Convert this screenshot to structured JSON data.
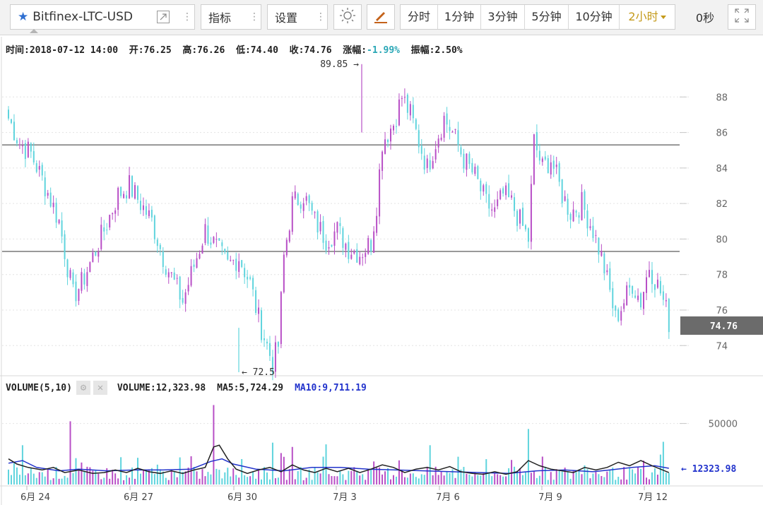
{
  "toolbar": {
    "symbol": "Bitfinex-LTC-USD",
    "indicators_label": "指标",
    "settings_label": "设置",
    "timeframes": [
      "分时",
      "1分钟",
      "3分钟",
      "5分钟",
      "10分钟",
      "2小时"
    ],
    "active_timeframe": "2小时",
    "countdown": "0秒",
    "accent_color": "#c49a1a",
    "star_color": "#2f6fd1"
  },
  "info": {
    "time_label": "时间:",
    "time": "2018-07-12 14:00",
    "open_label": "开:",
    "open": "76.25",
    "high_label": "高:",
    "high": "76.26",
    "low_label": "低:",
    "low": "74.40",
    "close_label": "收:",
    "close": "74.76",
    "change_label": "涨幅:",
    "change": "-1.99%",
    "amplitude_label": "振幅:",
    "amplitude": "2.50%"
  },
  "volume_info": {
    "label": "VOLUME(5,10)",
    "volume": "VOLUME:12,323.98",
    "ma5": "MA5:5,724.29",
    "ma10": "MA10:9,711.19"
  },
  "chart_data": {
    "type": "candlestick",
    "up_color": "#b84fc6",
    "down_color": "#5fd4dd",
    "price_axis": {
      "ticks": [
        74,
        76,
        78,
        80,
        82,
        84,
        86,
        88
      ],
      "range": [
        72.3,
        90.2
      ]
    },
    "horizontal_lines": [
      85.3,
      79.3
    ],
    "max_marker": {
      "label": "89.85",
      "value": 89.85
    },
    "min_marker": {
      "label": "72.5",
      "value": 72.5
    },
    "last_price": "74.76",
    "x_labels": [
      "6月 24",
      "6月 27",
      "6月 30",
      "7月 3",
      "7月 6",
      "7月 9",
      "7月 12"
    ],
    "volume_axis": {
      "tick": "50000",
      "range": [
        0,
        70000
      ]
    },
    "volume_last_label": "12323.98",
    "price_path": [
      [
        86.8,
        0
      ],
      [
        85.4,
        4
      ],
      [
        84.8,
        8
      ],
      [
        83.0,
        13
      ],
      [
        81.0,
        18
      ],
      [
        76.8,
        23
      ],
      [
        77.5,
        26
      ],
      [
        79.0,
        30
      ],
      [
        80.5,
        34
      ],
      [
        82.5,
        39
      ],
      [
        83.0,
        43
      ],
      [
        82.0,
        47
      ],
      [
        81.0,
        51
      ],
      [
        79.0,
        55
      ],
      [
        77.5,
        59
      ],
      [
        76.5,
        62
      ],
      [
        78.5,
        66
      ],
      [
        80.5,
        70
      ],
      [
        79.5,
        74
      ],
      [
        78.5,
        78
      ],
      [
        79.0,
        82
      ],
      [
        77.5,
        86
      ],
      [
        75.5,
        89
      ],
      [
        74.0,
        92
      ],
      [
        73.0,
        94
      ],
      [
        74.0,
        96
      ],
      [
        79.0,
        98
      ],
      [
        82.0,
        101
      ],
      [
        82.5,
        105
      ],
      [
        81.0,
        109
      ],
      [
        80.0,
        113
      ],
      [
        80.5,
        117
      ],
      [
        79.5,
        121
      ],
      [
        79.2,
        125
      ],
      [
        79.8,
        129
      ],
      [
        82.0,
        131
      ],
      [
        85.5,
        133
      ],
      [
        86.5,
        137
      ],
      [
        88.0,
        140
      ],
      [
        87.0,
        143
      ],
      [
        85.5,
        146
      ],
      [
        84.0,
        149
      ],
      [
        85.5,
        152
      ],
      [
        86.8,
        155
      ],
      [
        86.0,
        158
      ],
      [
        84.5,
        162
      ],
      [
        83.5,
        166
      ],
      [
        82.0,
        170
      ],
      [
        81.5,
        173
      ],
      [
        82.5,
        176
      ],
      [
        82.0,
        179
      ],
      [
        81.0,
        182
      ],
      [
        80.0,
        185
      ],
      [
        85.5,
        187
      ],
      [
        84.0,
        190
      ],
      [
        84.5,
        193
      ],
      [
        82.5,
        197
      ],
      [
        81.5,
        200
      ],
      [
        82.0,
        204
      ],
      [
        80.5,
        208
      ],
      [
        79.0,
        211
      ],
      [
        77.0,
        214
      ],
      [
        75.5,
        216
      ],
      [
        76.5,
        219
      ],
      [
        77.5,
        222
      ],
      [
        76.5,
        225
      ],
      [
        78.5,
        228
      ],
      [
        77.0,
        232
      ],
      [
        75.5,
        235
      ]
    ],
    "volume_spikes": [
      [
        5,
        0.46
      ],
      [
        22,
        0.74
      ],
      [
        73,
        0.93
      ],
      [
        94,
        0.49
      ],
      [
        101,
        0.44
      ],
      [
        113,
        0.47
      ],
      [
        150,
        0.46
      ],
      [
        185,
        0.65
      ],
      [
        233,
        0.5
      ]
    ],
    "ma10_path": [
      [
        0.25,
        0
      ],
      [
        0.28,
        5
      ],
      [
        0.2,
        10
      ],
      [
        0.16,
        18
      ],
      [
        0.18,
        25
      ],
      [
        0.16,
        35
      ],
      [
        0.17,
        45
      ],
      [
        0.17,
        55
      ],
      [
        0.18,
        65
      ],
      [
        0.27,
        72
      ],
      [
        0.3,
        76
      ],
      [
        0.24,
        80
      ],
      [
        0.18,
        88
      ],
      [
        0.16,
        98
      ],
      [
        0.2,
        108
      ],
      [
        0.2,
        118
      ],
      [
        0.18,
        128
      ],
      [
        0.17,
        138
      ],
      [
        0.16,
        148
      ],
      [
        0.15,
        158
      ],
      [
        0.14,
        168
      ],
      [
        0.13,
        178
      ],
      [
        0.16,
        188
      ],
      [
        0.17,
        198
      ],
      [
        0.15,
        208
      ],
      [
        0.17,
        214
      ],
      [
        0.2,
        222
      ],
      [
        0.22,
        230
      ],
      [
        0.19,
        235
      ]
    ],
    "ma5_path": [
      [
        0.3,
        0
      ],
      [
        0.24,
        3
      ],
      [
        0.2,
        7
      ],
      [
        0.17,
        12
      ],
      [
        0.2,
        16
      ],
      [
        0.14,
        20
      ],
      [
        0.17,
        25
      ],
      [
        0.13,
        30
      ],
      [
        0.14,
        34
      ],
      [
        0.17,
        38
      ],
      [
        0.14,
        42
      ],
      [
        0.19,
        46
      ],
      [
        0.15,
        50
      ],
      [
        0.13,
        54
      ],
      [
        0.16,
        58
      ],
      [
        0.13,
        62
      ],
      [
        0.17,
        66
      ],
      [
        0.2,
        70
      ],
      [
        0.44,
        73
      ],
      [
        0.46,
        75
      ],
      [
        0.3,
        78
      ],
      [
        0.18,
        81
      ],
      [
        0.13,
        85
      ],
      [
        0.17,
        89
      ],
      [
        0.2,
        93
      ],
      [
        0.15,
        97
      ],
      [
        0.23,
        101
      ],
      [
        0.17,
        105
      ],
      [
        0.14,
        109
      ],
      [
        0.19,
        113
      ],
      [
        0.15,
        117
      ],
      [
        0.19,
        121
      ],
      [
        0.14,
        125
      ],
      [
        0.18,
        129
      ],
      [
        0.23,
        133
      ],
      [
        0.2,
        137
      ],
      [
        0.14,
        141
      ],
      [
        0.18,
        145
      ],
      [
        0.2,
        149
      ],
      [
        0.17,
        153
      ],
      [
        0.21,
        157
      ],
      [
        0.15,
        161
      ],
      [
        0.13,
        165
      ],
      [
        0.12,
        169
      ],
      [
        0.15,
        173
      ],
      [
        0.12,
        177
      ],
      [
        0.15,
        181
      ],
      [
        0.28,
        185
      ],
      [
        0.22,
        189
      ],
      [
        0.18,
        193
      ],
      [
        0.16,
        197
      ],
      [
        0.14,
        201
      ],
      [
        0.2,
        205
      ],
      [
        0.17,
        209
      ],
      [
        0.2,
        213
      ],
      [
        0.26,
        217
      ],
      [
        0.22,
        221
      ],
      [
        0.28,
        225
      ],
      [
        0.22,
        229
      ],
      [
        0.18,
        232
      ],
      [
        0.14,
        235
      ]
    ]
  }
}
